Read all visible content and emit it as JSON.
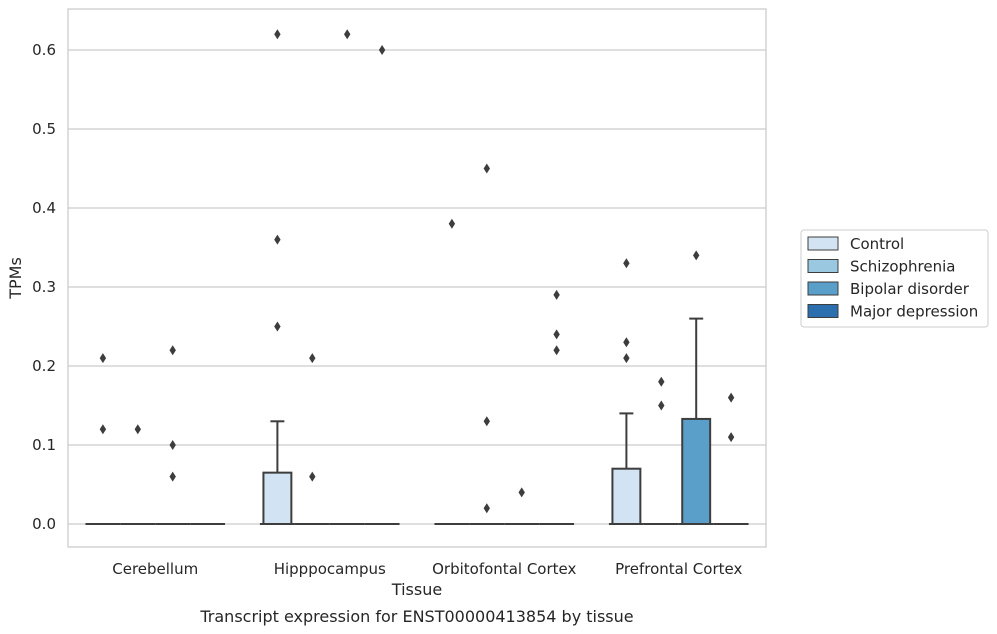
{
  "chart_data": {
    "type": "box",
    "xlabel": "Tissue",
    "ylabel": "TPMs",
    "caption": "Transcript expression for ENST00000413854 by tissue",
    "ylim": [
      -0.03,
      0.655
    ],
    "yticks": [
      "0.0",
      "0.1",
      "0.2",
      "0.3",
      "0.4",
      "0.5",
      "0.6"
    ],
    "ytick_values": [
      0.0,
      0.1,
      0.2,
      0.3,
      0.4,
      0.5,
      0.6
    ],
    "grid": "horizontal",
    "legend_position": "right",
    "categories": [
      "Cerebellum",
      "Hipppocampus",
      "Orbitofontal Cortex",
      "Prefrontal Cortex"
    ],
    "series": [
      {
        "name": "Control",
        "color": "#d2e3f3",
        "boxes": [
          {
            "q1": 0.0,
            "median": 0.0,
            "q3": 0.0,
            "whisker_low": 0.0,
            "whisker_high": 0.0,
            "outliers": [
              0.21,
              0.12
            ]
          },
          {
            "q1": 0.0,
            "median": 0.0,
            "q3": 0.065,
            "whisker_low": 0.0,
            "whisker_high": 0.13,
            "outliers": [
              0.62,
              0.36,
              0.25
            ]
          },
          {
            "q1": 0.0,
            "median": 0.0,
            "q3": 0.0,
            "whisker_low": 0.0,
            "whisker_high": 0.0,
            "outliers": [
              0.38
            ]
          },
          {
            "q1": 0.0,
            "median": 0.0,
            "q3": 0.07,
            "whisker_low": 0.0,
            "whisker_high": 0.14,
            "outliers": [
              0.33,
              0.23,
              0.21
            ]
          }
        ]
      },
      {
        "name": "Schizophrenia",
        "color": "#9ac8e0",
        "boxes": [
          {
            "q1": 0.0,
            "median": 0.0,
            "q3": 0.0,
            "whisker_low": 0.0,
            "whisker_high": 0.0,
            "outliers": [
              0.12
            ]
          },
          {
            "q1": 0.0,
            "median": 0.0,
            "q3": 0.0,
            "whisker_low": 0.0,
            "whisker_high": 0.0,
            "outliers": [
              0.21,
              0.06
            ]
          },
          {
            "q1": 0.0,
            "median": 0.0,
            "q3": 0.0,
            "whisker_low": 0.0,
            "whisker_high": 0.0,
            "outliers": [
              0.45,
              0.13,
              0.02
            ]
          },
          {
            "q1": 0.0,
            "median": 0.0,
            "q3": 0.0,
            "whisker_low": 0.0,
            "whisker_high": 0.0,
            "outliers": [
              0.18,
              0.15
            ]
          }
        ]
      },
      {
        "name": "Bipolar disorder",
        "color": "#5a9fca",
        "boxes": [
          {
            "q1": 0.0,
            "median": 0.0,
            "q3": 0.0,
            "whisker_low": 0.0,
            "whisker_high": 0.0,
            "outliers": [
              0.22,
              0.1,
              0.06
            ]
          },
          {
            "q1": 0.0,
            "median": 0.0,
            "q3": 0.0,
            "whisker_low": 0.0,
            "whisker_high": 0.0,
            "outliers": [
              0.62
            ]
          },
          {
            "q1": 0.0,
            "median": 0.0,
            "q3": 0.0,
            "whisker_low": 0.0,
            "whisker_high": 0.0,
            "outliers": [
              0.04
            ]
          },
          {
            "q1": 0.0,
            "median": 0.0,
            "q3": 0.133,
            "whisker_low": 0.0,
            "whisker_high": 0.26,
            "outliers": [
              0.34
            ]
          }
        ]
      },
      {
        "name": "Major depression",
        "color": "#2c6fae",
        "boxes": [
          {
            "q1": 0.0,
            "median": 0.0,
            "q3": 0.0,
            "whisker_low": 0.0,
            "whisker_high": 0.0,
            "outliers": []
          },
          {
            "q1": 0.0,
            "median": 0.0,
            "q3": 0.0,
            "whisker_low": 0.0,
            "whisker_high": 0.0,
            "outliers": [
              0.6
            ]
          },
          {
            "q1": 0.0,
            "median": 0.0,
            "q3": 0.0,
            "whisker_low": 0.0,
            "whisker_high": 0.0,
            "outliers": [
              0.29,
              0.24,
              0.22
            ]
          },
          {
            "q1": 0.0,
            "median": 0.0,
            "q3": 0.0,
            "whisker_low": 0.0,
            "whisker_high": 0.0,
            "outliers": [
              0.16,
              0.11
            ]
          }
        ]
      }
    ]
  }
}
